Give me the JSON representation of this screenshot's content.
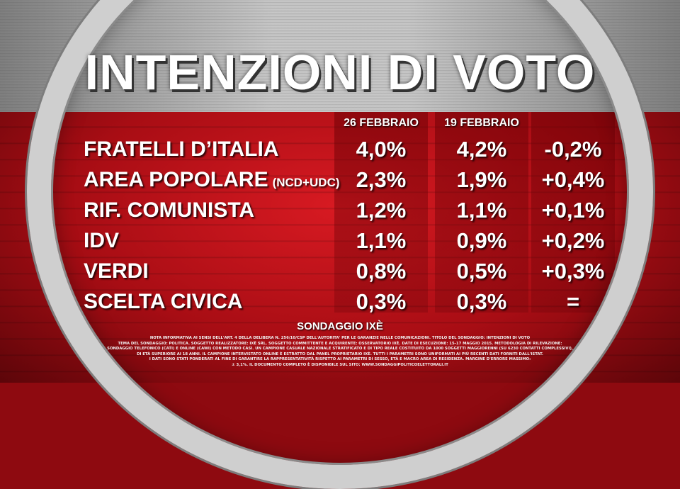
{
  "title": "INTENZIONI DI VOTO",
  "chart_data": {
    "type": "table",
    "columns": [
      "",
      "26 FEBBRAIO",
      "19 FEBBRAIO",
      ""
    ],
    "rows": [
      {
        "party": "FRATELLI D’ITALIA",
        "note": "",
        "current": "4,0%",
        "previous": "4,2%",
        "change": "-0,2%"
      },
      {
        "party": "AREA POPOLARE",
        "note": "(NCD+UDC)",
        "current": "2,3%",
        "previous": "1,9%",
        "change": "+0,4%"
      },
      {
        "party": "RIF. COMUNISTA",
        "note": "",
        "current": "1,2%",
        "previous": "1,1%",
        "change": "+0,1%"
      },
      {
        "party": "IDV",
        "note": "",
        "current": "1,1%",
        "previous": "0,9%",
        "change": "+0,2%"
      },
      {
        "party": "VERDI",
        "note": "",
        "current": "0,8%",
        "previous": "0,5%",
        "change": "+0,3%"
      },
      {
        "party": "SCELTA CIVICA",
        "note": "",
        "current": "0,3%",
        "previous": "0,3%",
        "change": "="
      }
    ]
  },
  "source": "SONDAGGIO IXÈ",
  "fine_print": [
    "NOTA INFORMATIVA AI SENSI DELL'ART. 4 DELLA DELIBERA N. 256/10/CSP DELL'AUTORITA' PER LE GARANZIE NELLE COMUNICAZIONI. TITOLO DEL SONDAGGIO: INTENZIONI DI VOTO",
    "TEMA DEL SONDAGGIO: POLITICA. SOGGETTO REALIZZATORE: IXÈ SRL. SOGGETTO COMMITTENTE E ACQUIRENTE: OSSERVATORIO IXÈ. DATE DI ESECUZIONE: 15-17 MAGGIO 2015. METODOLOGIA DI RILEVAZIONE:",
    "SONDAGGIO TELEFONICO (CATI) E ONLINE (CAWI) CON METODO CASI. UN CAMPIONE CASUALE NAZIONALE STRATIFICATO E DI TIPO REALE COSTITUITO DA 1000 SOGGETTI MAGGIORENNI (SU 6230 CONTATTI COMPLESSIVI),",
    "DI ETÀ SUPERIORE AI 18 ANNI. IL CAMPIONE INTERVISTATO ONLINE È ESTRATTO DAL PANEL PROPRIETARIO IXÈ. TUTTI I PARAMETRI SONO UNIFORMATI AI PIÙ RECENTI DATI FORNITI DALL'ISTAT.",
    "I DATI SONO STATI PONDERATI AL FINE DI GARANTIRE LA RAPPRESENTATIVITÀ RISPETTO AI PARAMETRI DI SESSO, ETÀ E MACRO AREA DI RESIDENZA. MARGINE D'ERRORE MASSIMO:",
    "± 3,1%. IL DOCUMENTO COMPLETO È DISPONIBILE SUL SITO: WWW.SONDAGGIPOLITICOELETTORALI.IT"
  ]
}
